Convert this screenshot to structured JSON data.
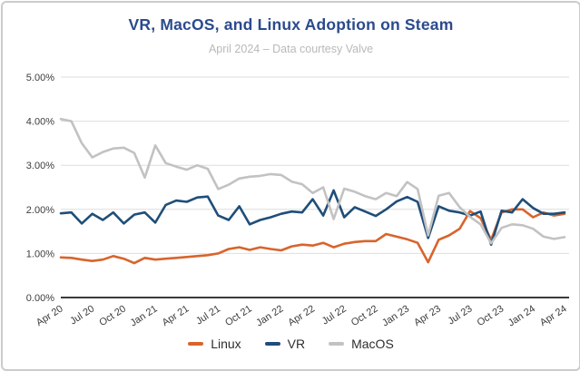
{
  "header": {
    "title": "VR, MacOS, and Linux Adoption on Steam",
    "subtitle": "April 2024 – Data courtesy Valve",
    "title_color": "#2b4a8d"
  },
  "chart_data": {
    "type": "line",
    "title": "VR, MacOS, and Linux Adoption on Steam",
    "subtitle": "April 2024 – Data courtesy Valve",
    "xlabel": "",
    "ylabel": "",
    "ylim": [
      0,
      5
    ],
    "yticks": [
      "0.00%",
      "1.00%",
      "2.00%",
      "3.00%",
      "4.00%",
      "5.00%"
    ],
    "grid": true,
    "legend_position": "bottom",
    "x_tick_every": 3,
    "x": [
      "Apr 20",
      "May 20",
      "Jun 20",
      "Jul 20",
      "Aug 20",
      "Sep 20",
      "Oct 20",
      "Nov 20",
      "Dec 20",
      "Jan 21",
      "Feb 21",
      "Mar 21",
      "Apr 21",
      "May 21",
      "Jun 21",
      "Jul 21",
      "Aug 21",
      "Sep 21",
      "Oct 21",
      "Nov 21",
      "Dec 21",
      "Jan 22",
      "Feb 22",
      "Mar 22",
      "Apr 22",
      "May 22",
      "Jun 22",
      "Jul 22",
      "Aug 22",
      "Sep 22",
      "Oct 22",
      "Nov 22",
      "Dec 22",
      "Jan 23",
      "Feb 23",
      "Mar 23",
      "Apr 23",
      "May 23",
      "Jun 23",
      "Jul 23",
      "Aug 23",
      "Sep 23",
      "Oct 23",
      "Nov 23",
      "Dec 23",
      "Jan 24",
      "Feb 24",
      "Mar 24",
      "Apr 24"
    ],
    "series": [
      {
        "name": "Linux",
        "color": "#d8642c",
        "values": [
          0.91,
          0.9,
          0.86,
          0.83,
          0.86,
          0.94,
          0.88,
          0.78,
          0.9,
          0.86,
          0.88,
          0.9,
          0.92,
          0.94,
          0.96,
          1.0,
          1.1,
          1.14,
          1.08,
          1.14,
          1.1,
          1.07,
          1.16,
          1.2,
          1.18,
          1.24,
          1.14,
          1.22,
          1.26,
          1.28,
          1.28,
          1.44,
          1.38,
          1.32,
          1.24,
          0.8,
          1.31,
          1.41,
          1.56,
          1.96,
          1.8,
          1.31,
          1.93,
          2.0,
          2.0,
          1.82,
          1.93,
          1.86,
          1.9
        ]
      },
      {
        "name": "VR",
        "color": "#1f4e79",
        "values": [
          1.91,
          1.93,
          1.68,
          1.9,
          1.76,
          1.93,
          1.68,
          1.88,
          1.93,
          1.7,
          2.1,
          2.2,
          2.17,
          2.27,
          2.29,
          1.86,
          1.76,
          2.07,
          1.66,
          1.76,
          1.82,
          1.9,
          1.95,
          1.93,
          2.23,
          1.86,
          2.43,
          1.82,
          2.05,
          1.95,
          1.85,
          2.0,
          2.18,
          2.28,
          2.17,
          1.35,
          2.07,
          1.97,
          1.93,
          1.86,
          1.95,
          1.2,
          1.97,
          1.93,
          2.23,
          2.03,
          1.9,
          1.9,
          1.93
        ]
      },
      {
        "name": "MacOS",
        "color": "#c2c2c2",
        "values": [
          4.05,
          4.0,
          3.5,
          3.18,
          3.3,
          3.38,
          3.4,
          3.28,
          2.72,
          3.45,
          3.05,
          2.97,
          2.9,
          3.0,
          2.92,
          2.46,
          2.56,
          2.7,
          2.74,
          2.76,
          2.8,
          2.78,
          2.63,
          2.57,
          2.37,
          2.5,
          1.78,
          2.47,
          2.4,
          2.3,
          2.23,
          2.37,
          2.3,
          2.62,
          2.46,
          1.41,
          2.31,
          2.37,
          2.05,
          1.83,
          1.66,
          1.23,
          1.58,
          1.66,
          1.64,
          1.56,
          1.38,
          1.33,
          1.37
        ]
      }
    ]
  },
  "legend": {
    "items": [
      {
        "label": "Linux",
        "color": "#d8642c"
      },
      {
        "label": "VR",
        "color": "#1f4e79"
      },
      {
        "label": "MacOS",
        "color": "#c2c2c2"
      }
    ]
  }
}
